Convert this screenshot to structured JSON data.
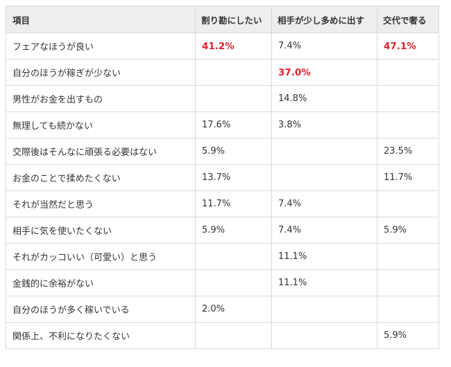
{
  "table": {
    "headers": [
      "項目",
      "割り勘にしたい",
      "相手が少し多めに出す",
      "交代で奢る"
    ],
    "rows": [
      {
        "label": "フェアなほうが良い",
        "cells": [
          "41.2%",
          "7.4%",
          "47.1%"
        ],
        "highlight": [
          true,
          false,
          true
        ]
      },
      {
        "label": "自分のほうが稼ぎが少ない",
        "cells": [
          "",
          "37.0%",
          ""
        ],
        "highlight": [
          false,
          true,
          false
        ]
      },
      {
        "label": "男性がお金を出すもの",
        "cells": [
          "",
          "14.8%",
          ""
        ],
        "highlight": [
          false,
          false,
          false
        ]
      },
      {
        "label": "無理しても続かない",
        "cells": [
          "17.6%",
          "3.8%",
          ""
        ],
        "highlight": [
          false,
          false,
          false
        ]
      },
      {
        "label": "交際後はそんなに頑張る必要はない",
        "cells": [
          "5.9%",
          "",
          "23.5%"
        ],
        "highlight": [
          false,
          false,
          false
        ]
      },
      {
        "label": "お金のことで揉めたくない",
        "cells": [
          "13.7%",
          "",
          "11.7%"
        ],
        "highlight": [
          false,
          false,
          false
        ]
      },
      {
        "label": "それが当然だと思う",
        "cells": [
          "11.7%",
          "7.4%",
          ""
        ],
        "highlight": [
          false,
          false,
          false
        ]
      },
      {
        "label": "相手に気を使いたくない",
        "cells": [
          "5.9%",
          "7.4%",
          "5.9%"
        ],
        "highlight": [
          false,
          false,
          false
        ]
      },
      {
        "label": "それがカッコいい（可愛い）と思う",
        "cells": [
          "",
          "11.1%",
          ""
        ],
        "highlight": [
          false,
          false,
          false
        ]
      },
      {
        "label": "金銭的に余裕がない",
        "cells": [
          "",
          "11.1%",
          ""
        ],
        "highlight": [
          false,
          false,
          false
        ]
      },
      {
        "label": "自分のほうが多く稼いでいる",
        "cells": [
          "2.0%",
          "",
          ""
        ],
        "highlight": [
          false,
          false,
          false
        ]
      },
      {
        "label": "関係上、不利になりたくない",
        "cells": [
          "",
          "",
          "5.9%"
        ],
        "highlight": [
          false,
          false,
          false
        ]
      }
    ]
  },
  "colors": {
    "highlight": "#e0202d",
    "header_bg": "#eeeeee",
    "border": "#d8d8d8",
    "text": "#333333"
  }
}
